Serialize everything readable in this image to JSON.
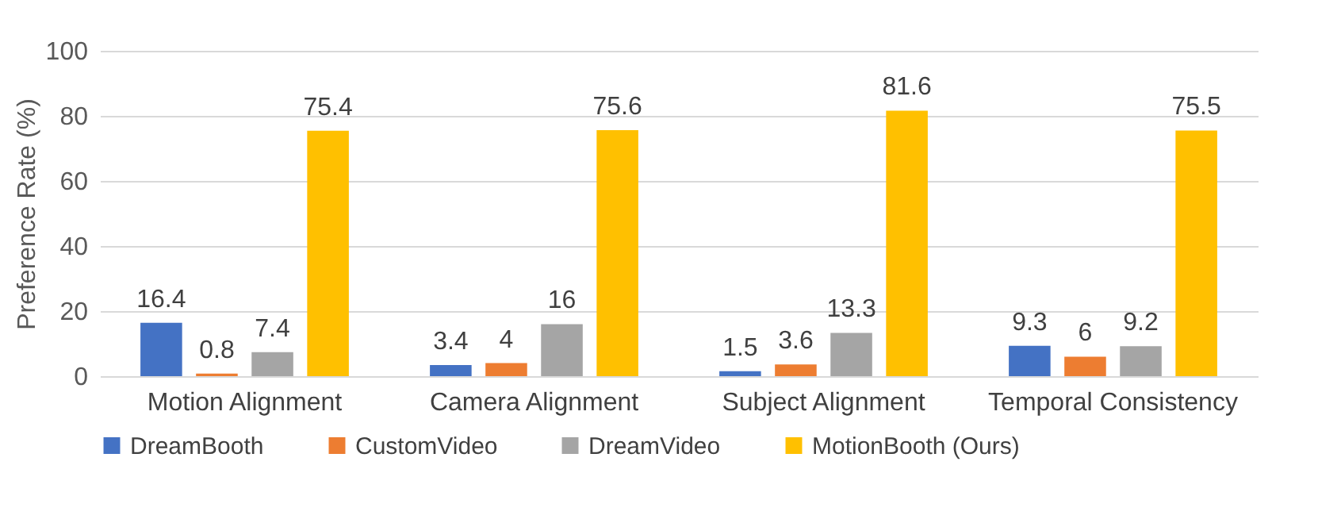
{
  "chart_data": {
    "type": "bar",
    "ylabel": "Preference Rate (%)",
    "categories": [
      "Motion Alignment",
      "Camera Alignment",
      "Subject Alignment",
      "Temporal Consistency"
    ],
    "series": [
      {
        "name": "DreamBooth",
        "color": "#4472c4",
        "values": [
          16.4,
          3.4,
          1.5,
          9.3
        ]
      },
      {
        "name": "CustomVideo",
        "color": "#ed7d31",
        "values": [
          0.8,
          4,
          3.6,
          6
        ]
      },
      {
        "name": "DreamVideo",
        "color": "#a5a5a5",
        "values": [
          7.4,
          16,
          13.3,
          9.2
        ]
      },
      {
        "name": "MotionBooth (Ours)",
        "color": "#ffc000",
        "values": [
          75.4,
          75.6,
          81.6,
          75.5
        ]
      }
    ],
    "ylim": [
      0,
      100
    ],
    "yticks": [
      0,
      20,
      40,
      60,
      80,
      100
    ],
    "grid": "y",
    "legend": "bottom",
    "data_labels": true
  }
}
